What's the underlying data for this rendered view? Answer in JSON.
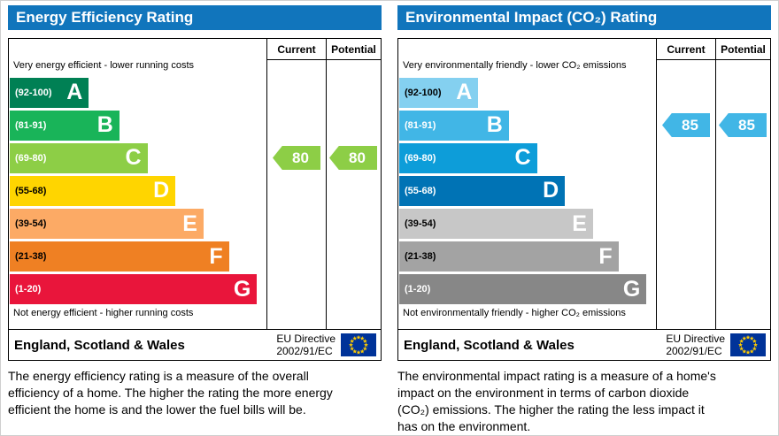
{
  "eu_flag": {
    "background": "#003399",
    "star_color": "#ffcc00"
  },
  "chart_data": [
    {
      "type": "bar",
      "title": "Energy Efficiency Rating",
      "bands": [
        {
          "letter": "A",
          "min": 92,
          "max": 100
        },
        {
          "letter": "B",
          "min": 81,
          "max": 91
        },
        {
          "letter": "C",
          "min": 69,
          "max": 80
        },
        {
          "letter": "D",
          "min": 55,
          "max": 68
        },
        {
          "letter": "E",
          "min": 39,
          "max": 54
        },
        {
          "letter": "F",
          "min": 21,
          "max": 38
        },
        {
          "letter": "G",
          "min": 1,
          "max": 20
        }
      ],
      "current": 80,
      "potential": 80,
      "current_band": "C",
      "potential_band": "C"
    },
    {
      "type": "bar",
      "title": "Environmental Impact (CO₂) Rating",
      "bands": [
        {
          "letter": "A",
          "min": 92,
          "max": 100
        },
        {
          "letter": "B",
          "min": 81,
          "max": 91
        },
        {
          "letter": "C",
          "min": 69,
          "max": 80
        },
        {
          "letter": "D",
          "min": 55,
          "max": 68
        },
        {
          "letter": "E",
          "min": 39,
          "max": 54
        },
        {
          "letter": "F",
          "min": 21,
          "max": 38
        },
        {
          "letter": "G",
          "min": 1,
          "max": 20
        }
      ],
      "current": 85,
      "potential": 85,
      "current_band": "B",
      "potential_band": "B"
    }
  ],
  "panels": [
    {
      "title": "Energy Efficiency Rating",
      "header_color": "#1175bc",
      "columns": {
        "current": "Current",
        "potential": "Potential"
      },
      "top_caption": "Very energy efficient - lower running costs",
      "bottom_caption": "Not energy efficient - higher running costs",
      "bands": [
        {
          "letter": "A",
          "range": "(92-100)",
          "color": "#008054",
          "text_color": "#ffffff",
          "width": "31%"
        },
        {
          "letter": "B",
          "range": "(81-91)",
          "color": "#19b459",
          "text_color": "#ffffff",
          "width": "43%"
        },
        {
          "letter": "C",
          "range": "(69-80)",
          "color": "#8dce46",
          "text_color": "#ffffff",
          "width": "54%"
        },
        {
          "letter": "D",
          "range": "(55-68)",
          "color": "#ffd500",
          "text_color": "#000000",
          "width": "65%"
        },
        {
          "letter": "E",
          "range": "(39-54)",
          "color": "#fcaa65",
          "text_color": "#000000",
          "width": "76%"
        },
        {
          "letter": "F",
          "range": "(21-38)",
          "color": "#ef8023",
          "text_color": "#000000",
          "width": "86%"
        },
        {
          "letter": "G",
          "range": "(1-20)",
          "color": "#e9153b",
          "text_color": "#ffffff",
          "width": "97%"
        }
      ],
      "current": {
        "value": 80,
        "band_index": 2,
        "color": "#8dce46"
      },
      "potential": {
        "value": 80,
        "band_index": 2,
        "color": "#8dce46"
      },
      "footer": {
        "region": "England, Scotland & Wales",
        "directive": [
          "EU Directive",
          "2002/91/EC"
        ]
      },
      "description": "The energy efficiency rating is a measure of the overall efficiency of a home. The higher the rating the more energy efficient the home is and the lower the fuel bills will be."
    },
    {
      "title": "Environmental Impact (CO₂) Rating",
      "header_color": "#1175bc",
      "columns": {
        "current": "Current",
        "potential": "Potential"
      },
      "top_caption": "Very environmentally friendly - lower CO₂ emissions",
      "bottom_caption": "Not environmentally friendly - higher CO₂ emissions",
      "bands": [
        {
          "letter": "A",
          "range": "(92-100)",
          "color": "#84d0f0",
          "text_color": "#000000",
          "width": "31%"
        },
        {
          "letter": "B",
          "range": "(81-91)",
          "color": "#41b6e6",
          "text_color": "#ffffff",
          "width": "43%"
        },
        {
          "letter": "C",
          "range": "(69-80)",
          "color": "#0d9dd9",
          "text_color": "#ffffff",
          "width": "54%"
        },
        {
          "letter": "D",
          "range": "(55-68)",
          "color": "#0073b5",
          "text_color": "#ffffff",
          "width": "65%"
        },
        {
          "letter": "E",
          "range": "(39-54)",
          "color": "#c7c7c7",
          "text_color": "#000000",
          "width": "76%"
        },
        {
          "letter": "F",
          "range": "(21-38)",
          "color": "#a3a3a3",
          "text_color": "#000000",
          "width": "86%"
        },
        {
          "letter": "G",
          "range": "(1-20)",
          "color": "#878787",
          "text_color": "#ffffff",
          "width": "97%"
        }
      ],
      "current": {
        "value": 85,
        "band_index": 1,
        "color": "#41b6e6"
      },
      "potential": {
        "value": 85,
        "band_index": 1,
        "color": "#41b6e6"
      },
      "footer": {
        "region": "England, Scotland & Wales",
        "directive": [
          "EU Directive",
          "2002/91/EC"
        ]
      },
      "description": "The environmental impact rating is a measure of a home's impact on the environment in terms of carbon dioxide (CO₂) emissions. The higher the rating the less impact it has on the environment."
    }
  ]
}
